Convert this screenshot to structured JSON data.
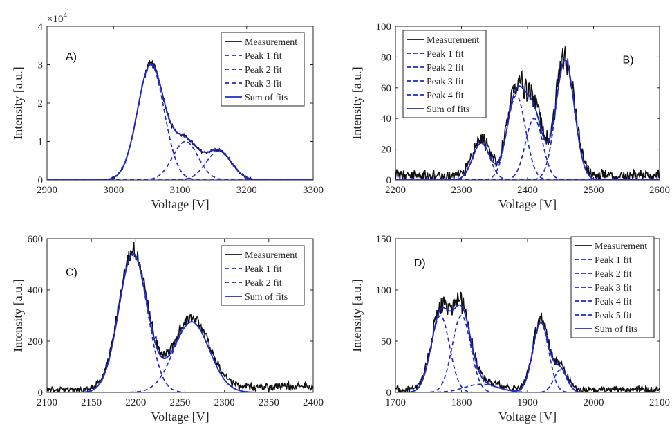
{
  "colors": {
    "measurement": "#111111",
    "fit": "#1f28cc",
    "axis": "#262626",
    "legend_border": "#262626"
  },
  "chart_data": [
    {
      "type": "line",
      "panel_label": "A)",
      "xlabel": "Voltage [V]",
      "ylabel": "Intensity [a.u.]",
      "xlim": [
        2900,
        3300
      ],
      "ylim": [
        0,
        40000
      ],
      "xticks": [
        2900,
        3000,
        3100,
        3200,
        3300
      ],
      "yticks": [
        0,
        10000,
        20000,
        30000,
        40000
      ],
      "ytick_labels": [
        "0",
        "1",
        "2",
        "3",
        "4"
      ],
      "y_exponent": "×10",
      "y_exponent_power": "4",
      "noise": 0.02,
      "legend": {
        "loc": "top-right",
        "entries": [
          "Measurement",
          "Peak 1 fit",
          "Peak 2 fit",
          "Peak 3 fit",
          "Sum of fits"
        ]
      },
      "peaks": [
        {
          "center": 3056,
          "sigma": 20,
          "amplitude": 30000
        },
        {
          "center": 3108,
          "sigma": 19,
          "amplitude": 10000
        },
        {
          "center": 3158,
          "sigma": 19,
          "amplitude": 7500
        }
      ]
    },
    {
      "type": "line",
      "panel_label": "B)",
      "xlabel": "Voltage [V]",
      "ylabel": "Intensity [a.u.]",
      "xlim": [
        2200,
        2600
      ],
      "ylim": [
        0,
        100
      ],
      "xticks": [
        2200,
        2300,
        2400,
        2500,
        2600
      ],
      "yticks": [
        0,
        20,
        40,
        60,
        80,
        100
      ],
      "ytick_labels": [
        "0",
        "20",
        "40",
        "60",
        "80",
        "100"
      ],
      "noise": 0.09,
      "legend": {
        "loc": "top-left",
        "entries": [
          "Measurement",
          "Peak 1 fit",
          "Peak 2 fit",
          "Peak 3 fit",
          "Peak 4 fit",
          "Sum of fits"
        ]
      },
      "peaks": [
        {
          "center": 2330,
          "sigma": 13,
          "amplitude": 24
        },
        {
          "center": 2383,
          "sigma": 14,
          "amplitude": 55
        },
        {
          "center": 2410,
          "sigma": 13,
          "amplitude": 40
        },
        {
          "center": 2457,
          "sigma": 14,
          "amplitude": 78
        }
      ]
    },
    {
      "type": "line",
      "panel_label": "C)",
      "xlabel": "Voltage [V]",
      "ylabel": "Intensity [a.u.]",
      "xlim": [
        2100,
        2400
      ],
      "ylim": [
        0,
        600
      ],
      "xticks": [
        2100,
        2150,
        2200,
        2250,
        2300,
        2350,
        2400
      ],
      "yticks": [
        0,
        200,
        400,
        600
      ],
      "ytick_labels": [
        "0",
        "200",
        "400",
        "600"
      ],
      "noise": 0.04,
      "legend": {
        "loc": "top-right",
        "entries": [
          "Measurement",
          "Peak 1 fit",
          "Peak 2 fit",
          "Sum of fits"
        ]
      },
      "peaks": [
        {
          "center": 2197,
          "sigma": 16,
          "amplitude": 540
        },
        {
          "center": 2263,
          "sigma": 20,
          "amplitude": 275
        }
      ]
    },
    {
      "type": "line",
      "panel_label": "D)",
      "xlabel": "Voltage [V]",
      "ylabel": "Intensity [a.u.]",
      "xlim": [
        1700,
        2100
      ],
      "ylim": [
        0,
        150
      ],
      "xticks": [
        1700,
        1800,
        1900,
        2000,
        2100
      ],
      "yticks": [
        0,
        50,
        100,
        150
      ],
      "ytick_labels": [
        "0",
        "50",
        "100",
        "150"
      ],
      "noise": 0.08,
      "legend": {
        "loc": "top-right",
        "entries": [
          "Measurement",
          "Peak 1 fit",
          "Peak 2 fit",
          "Peak 3 fit",
          "Peak 4 fit",
          "Peak 5 fit",
          "Sum of fits"
        ]
      },
      "peaks": [
        {
          "center": 1768,
          "sigma": 14,
          "amplitude": 75
        },
        {
          "center": 1800,
          "sigma": 14,
          "amplitude": 75
        },
        {
          "center": 1920,
          "sigma": 12,
          "amplitude": 68
        },
        {
          "center": 1950,
          "sigma": 10,
          "amplitude": 22
        },
        {
          "center": 1830,
          "sigma": 25,
          "amplitude": 8
        }
      ]
    }
  ]
}
